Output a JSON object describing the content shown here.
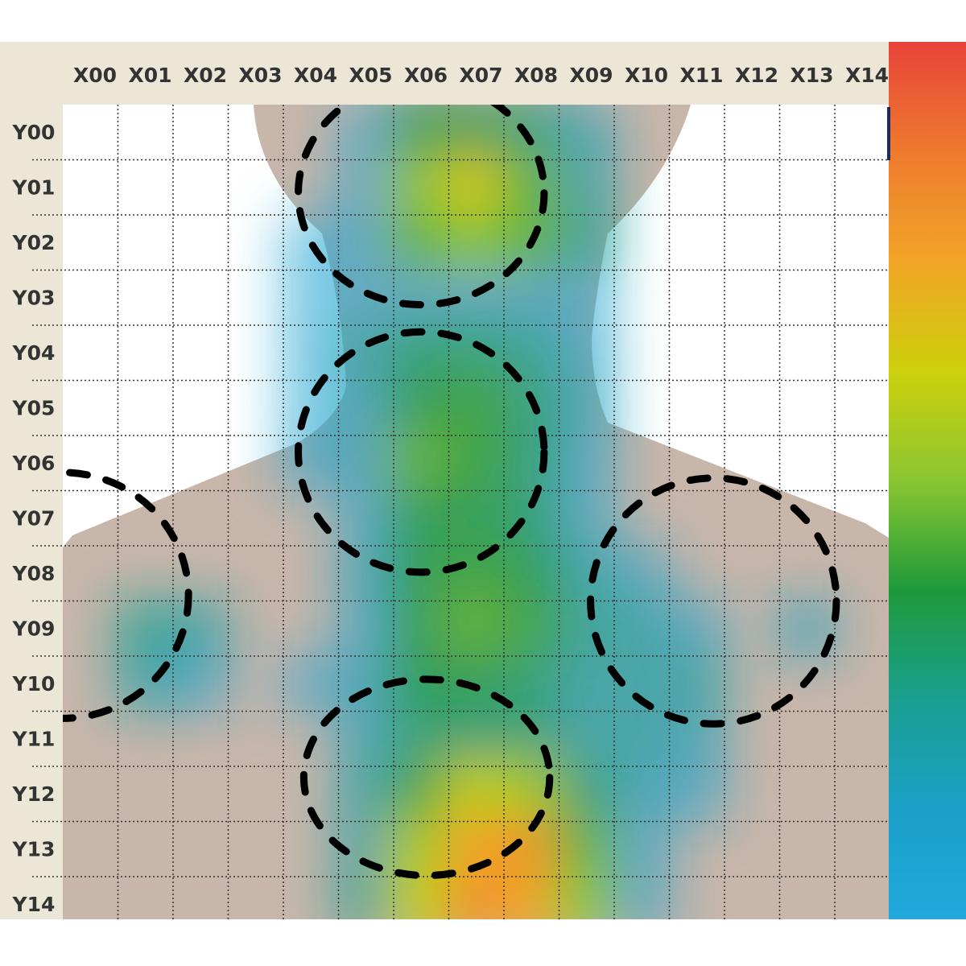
{
  "chart_data": {
    "type": "heatmap",
    "title": "",
    "xlabel": "",
    "ylabel": "",
    "columns": [
      "X00",
      "X01",
      "X02",
      "X03",
      "X04",
      "X05",
      "X06",
      "X07",
      "X08",
      "X09",
      "X10",
      "X11",
      "X12",
      "X13",
      "X14"
    ],
    "rows": [
      "Y00",
      "Y01",
      "Y02",
      "Y03",
      "Y04",
      "Y05",
      "Y06",
      "Y07",
      "Y08",
      "Y09",
      "Y10",
      "Y11",
      "Y12",
      "Y13",
      "Y14"
    ],
    "value_range": [
      0,
      1
    ],
    "values": [
      [
        0,
        0,
        0,
        0,
        0,
        0.05,
        0.35,
        0.35,
        0.3,
        0.15,
        0,
        0,
        0,
        0,
        0
      ],
      [
        0,
        0,
        0,
        0,
        0,
        0.1,
        0.5,
        0.65,
        0.45,
        0.2,
        0,
        0,
        0,
        0,
        0
      ],
      [
        0,
        0,
        0,
        0,
        0.05,
        0.1,
        0.45,
        0.5,
        0.45,
        0.25,
        0,
        0,
        0,
        0,
        0
      ],
      [
        0,
        0,
        0,
        0,
        0.05,
        0.05,
        0.1,
        0.1,
        0.1,
        0.05,
        0,
        0,
        0,
        0,
        0
      ],
      [
        0,
        0,
        0,
        0,
        0.05,
        0.2,
        0.3,
        0.3,
        0.25,
        0.1,
        0,
        0,
        0,
        0,
        0
      ],
      [
        0,
        0,
        0,
        0,
        0.05,
        0.15,
        0.35,
        0.4,
        0.3,
        0.15,
        0,
        0,
        0,
        0,
        0
      ],
      [
        0,
        0,
        0,
        0,
        0.1,
        0.15,
        0.45,
        0.4,
        0.3,
        0.1,
        0,
        0,
        0,
        0,
        0
      ],
      [
        0,
        0,
        0,
        0,
        0,
        0.1,
        0.35,
        0.35,
        0.3,
        0.1,
        0,
        0,
        0,
        0,
        0
      ],
      [
        0,
        0,
        0,
        0,
        0,
        0.15,
        0.35,
        0.4,
        0.35,
        0.2,
        0.1,
        0,
        0,
        0,
        0
      ],
      [
        0,
        0.25,
        0.2,
        0,
        0,
        0.1,
        0.35,
        0.45,
        0.4,
        0.25,
        0.2,
        0.1,
        0,
        0.15,
        0
      ],
      [
        0,
        0.2,
        0.1,
        0,
        0.05,
        0.15,
        0.35,
        0.35,
        0.3,
        0.2,
        0.2,
        0.2,
        0,
        0,
        0
      ],
      [
        0,
        0,
        0,
        0,
        0,
        0.15,
        0.3,
        0.3,
        0.3,
        0.2,
        0.2,
        0.15,
        0,
        0,
        0
      ],
      [
        0,
        0,
        0,
        0,
        0,
        0.2,
        0.4,
        0.6,
        0.55,
        0.3,
        0.15,
        0.1,
        0,
        0,
        0
      ],
      [
        0,
        0,
        0,
        0,
        0,
        0.2,
        0.55,
        0.75,
        0.8,
        0.45,
        0.1,
        0,
        0,
        0,
        0
      ],
      [
        0,
        0,
        0,
        0,
        0,
        0.25,
        0.6,
        0.8,
        0.75,
        0.5,
        0.1,
        0,
        0,
        0,
        0
      ]
    ],
    "regions": [
      {
        "shape": "dashed-ellipse",
        "cx": 8.5,
        "cy": 3.6,
        "rx": 4.4,
        "ry": 4.0
      },
      {
        "shape": "dashed-ellipse",
        "cx": 8.5,
        "cy": 8.3,
        "rx": 4.4,
        "ry": 4.3
      },
      {
        "shape": "dashed-ellipse",
        "cx": 8.6,
        "cy": 14.2,
        "rx": 4.4,
        "ry": 3.5
      },
      {
        "shape": "dashed-ellipse",
        "cx": 2.0,
        "cy": 10.9,
        "rx": 4.5,
        "ry": 4.4
      },
      {
        "shape": "dashed-ellipse",
        "cx": 13.8,
        "cy": 11.0,
        "rx": 4.4,
        "ry": 4.4
      }
    ],
    "colorbar": {
      "position": "right",
      "colors": [
        "#e8433a",
        "#ee7a2e",
        "#f1a526",
        "#cdd00c",
        "#8ac631",
        "#1e9a3a",
        "#1a9f90",
        "#1aa0c8",
        "#22a8dc"
      ]
    },
    "grid": true,
    "colors": {
      "frame": "#ebe6d6",
      "body": "#c9b6ab",
      "body_shadow": "#b09c90",
      "grid_line": "#333333",
      "region_outline": "#000000",
      "label": "#333333"
    }
  }
}
